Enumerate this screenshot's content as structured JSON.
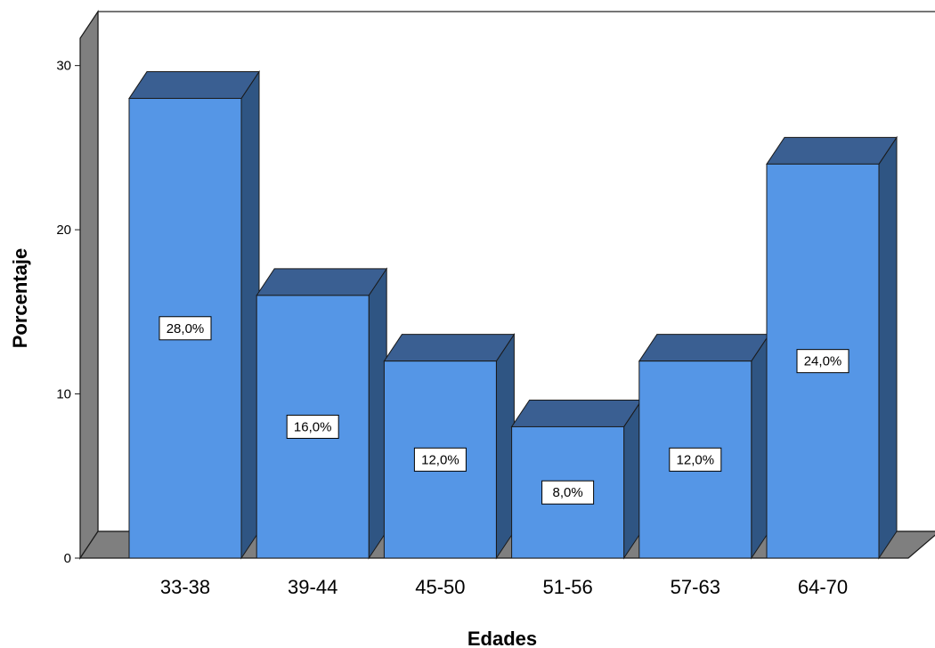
{
  "chart_data": {
    "type": "bar",
    "categories": [
      "33-38",
      "39-44",
      "45-50",
      "51-56",
      "57-63",
      "64-70"
    ],
    "values": [
      28.0,
      16.0,
      12.0,
      8.0,
      12.0,
      24.0
    ],
    "data_labels": [
      "28,0%",
      "16,0%",
      "12,0%",
      "8,0%",
      "12,0%",
      "24,0%"
    ],
    "title": "",
    "xlabel": "Edades",
    "ylabel": "Porcentaje",
    "ylim": [
      0,
      30
    ],
    "yticks": [
      "0",
      "10",
      "20",
      "30"
    ],
    "grid": false,
    "style": "3d"
  },
  "colors": {
    "bar_front": "#5596e6",
    "bar_top": "#3a5f92",
    "bar_side": "#2f5583",
    "back_wall": "#ffffff",
    "left_wall": "#7f7f7f",
    "floor": "#7f7f7f",
    "edge": "#1a1a1a"
  }
}
